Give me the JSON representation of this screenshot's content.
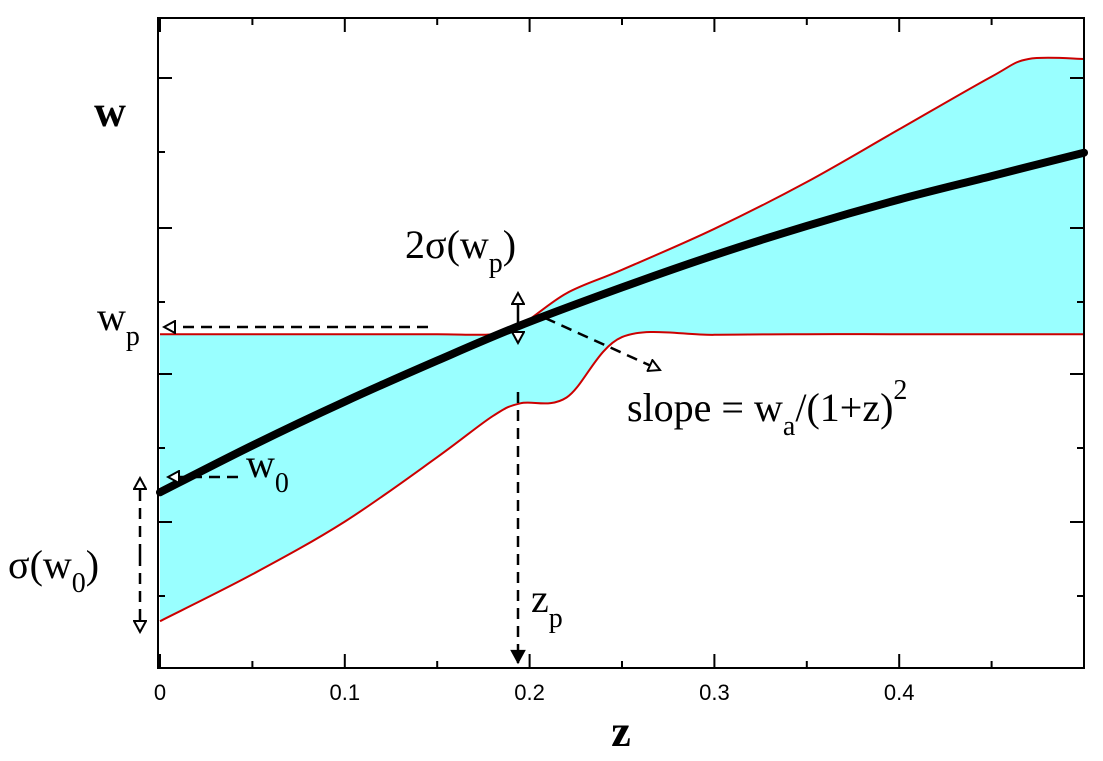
{
  "chart_data": {
    "type": "area",
    "xlabel": "z",
    "ylabel": "w",
    "xlim": [
      0,
      0.5
    ],
    "x_ticks": [
      "0",
      "0.1",
      "0.2",
      "0.3",
      "0.4"
    ],
    "grid": false,
    "colors": {
      "band_fill": "#99ffff",
      "band_edge": "#cc0000",
      "mean_line": "#000000",
      "annotation": "#000000"
    },
    "series": [
      {
        "role": "central",
        "x": [
          0,
          0.05,
          0.1,
          0.15,
          0.195,
          0.25,
          0.3,
          0.35,
          0.4,
          0.45,
          0.5
        ],
        "y": [
          -1.0,
          -0.92,
          -0.845,
          -0.775,
          -0.715,
          -0.65,
          -0.595,
          -0.545,
          -0.5,
          -0.46,
          -0.42
        ]
      },
      {
        "role": "upper",
        "x": [
          0,
          0.1,
          0.15,
          0.18,
          0.195,
          0.22,
          0.25,
          0.3,
          0.35,
          0.4,
          0.45,
          0.47,
          0.5
        ],
        "y": [
          -0.73,
          -0.73,
          -0.73,
          -0.73,
          -0.715,
          -0.66,
          -0.62,
          -0.55,
          -0.47,
          -0.38,
          -0.29,
          -0.26,
          -0.26
        ]
      },
      {
        "role": "lower",
        "x": [
          0,
          0.05,
          0.1,
          0.15,
          0.18,
          0.195,
          0.22,
          0.25,
          0.3,
          0.35,
          0.4,
          0.45,
          0.5
        ],
        "y": [
          -1.22,
          -1.14,
          -1.05,
          -0.94,
          -0.87,
          -0.848,
          -0.838,
          -0.735,
          -0.731,
          -0.73,
          -0.73,
          -0.73,
          -0.73
        ]
      }
    ],
    "annotations": {
      "two_sigma": "2σ(w",
      "two_sigma_sub": "p",
      "two_sigma_close": ")",
      "wp": "w",
      "wp_sub": "p",
      "w0": "w",
      "w0_sub": "0",
      "sigma_w0": "σ(w",
      "sigma_w0_sub": "0",
      "sigma_w0_close": ")",
      "slope": "slope = w",
      "slope_sub": "a",
      "slope_rest": "/(1+z)",
      "slope_sup": "2",
      "zp": "z",
      "zp_sub": "p"
    }
  }
}
